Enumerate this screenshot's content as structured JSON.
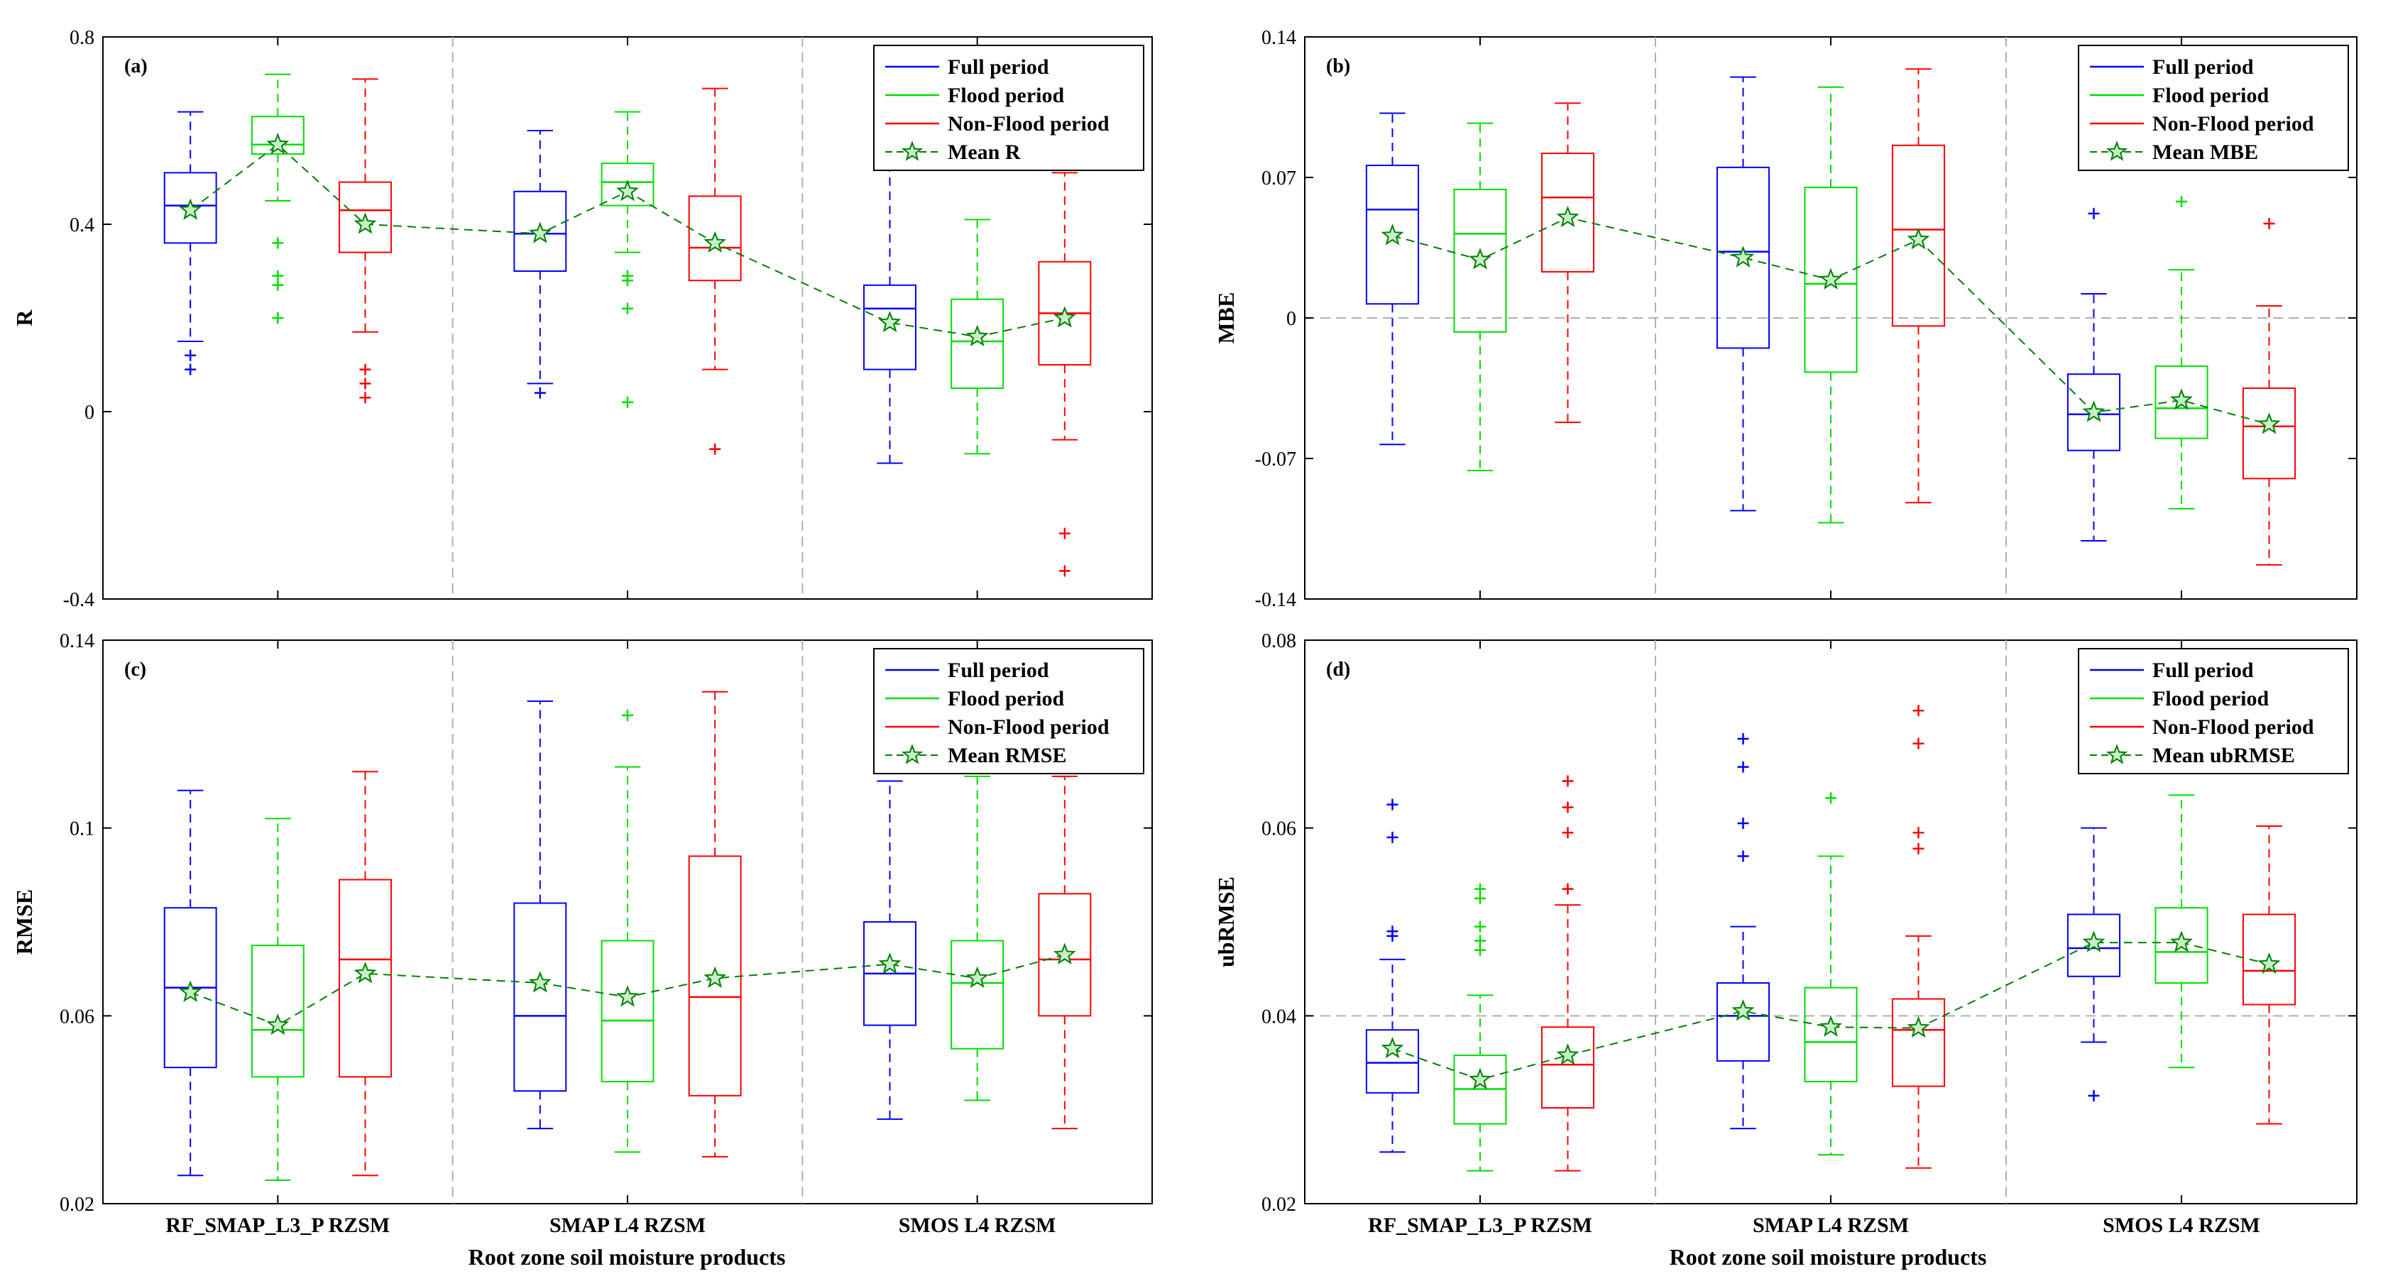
{
  "figure": {
    "xlabel": "Root zone soil moisture products",
    "categories": [
      "RF_SMAP_L3_P RZSM",
      "SMAP L4 RZSM",
      "SMOS L4 RZSM"
    ],
    "colors": {
      "full": "#0000ff",
      "flood": "#00dd00",
      "nonflood": "#ff0000",
      "mean": "#008000",
      "mean_fill": "#c8f0c8",
      "separator": "#b0b0b0"
    }
  },
  "chart_data": [
    {
      "type": "box",
      "panel_label": "(a)",
      "ylabel": "R",
      "ylim": [
        -0.4,
        0.8
      ],
      "yticks": [
        -0.4,
        0,
        0.4,
        0.8
      ],
      "ytick_labels": [
        "-0.4",
        "0",
        "0.4",
        "0.8"
      ],
      "hline": null,
      "legend": [
        "Full period",
        "Flood period",
        "Non-Flood period",
        "Mean R"
      ],
      "series_names": [
        "Full period",
        "Flood period",
        "Non-Flood period"
      ],
      "boxes": [
        [
          {
            "min": 0.15,
            "q1": 0.36,
            "median": 0.44,
            "q3": 0.51,
            "max": 0.64,
            "mean": 0.43,
            "outliers": [
              0.12,
              0.09
            ]
          },
          {
            "min": 0.45,
            "q1": 0.55,
            "median": 0.57,
            "q3": 0.63,
            "max": 0.72,
            "mean": 0.57,
            "outliers": [
              0.36,
              0.29,
              0.27,
              0.2
            ]
          },
          {
            "min": 0.17,
            "q1": 0.34,
            "median": 0.43,
            "q3": 0.49,
            "max": 0.71,
            "mean": 0.4,
            "outliers": [
              0.09,
              0.06,
              0.03
            ]
          }
        ],
        [
          {
            "min": 0.06,
            "q1": 0.3,
            "median": 0.38,
            "q3": 0.47,
            "max": 0.6,
            "mean": 0.38,
            "outliers": [
              0.04
            ]
          },
          {
            "min": 0.34,
            "q1": 0.44,
            "median": 0.49,
            "q3": 0.53,
            "max": 0.64,
            "mean": 0.47,
            "outliers": [
              0.29,
              0.28,
              0.22,
              0.02
            ]
          },
          {
            "min": 0.09,
            "q1": 0.28,
            "median": 0.35,
            "q3": 0.46,
            "max": 0.69,
            "mean": 0.36,
            "outliers": [
              -0.08
            ]
          }
        ],
        [
          {
            "min": -0.11,
            "q1": 0.09,
            "median": 0.22,
            "q3": 0.27,
            "max": 0.53,
            "mean": 0.19,
            "outliers": []
          },
          {
            "min": -0.09,
            "q1": 0.05,
            "median": 0.15,
            "q3": 0.24,
            "max": 0.41,
            "mean": 0.16,
            "outliers": []
          },
          {
            "min": -0.06,
            "q1": 0.1,
            "median": 0.21,
            "q3": 0.32,
            "max": 0.51,
            "mean": 0.2,
            "outliers": [
              -0.26,
              -0.34
            ]
          }
        ]
      ]
    },
    {
      "type": "box",
      "panel_label": "(b)",
      "ylabel": "MBE",
      "ylim": [
        -0.14,
        0.14
      ],
      "yticks": [
        -0.14,
        -0.07,
        0,
        0.07,
        0.14
      ],
      "ytick_labels": [
        "-0.14",
        "-0.07",
        "0",
        "0.07",
        "0.14"
      ],
      "hline": 0,
      "legend": [
        "Full period",
        "Flood period",
        "Non-Flood period",
        "Mean MBE"
      ],
      "series_names": [
        "Full period",
        "Flood period",
        "Non-Flood period"
      ],
      "boxes": [
        [
          {
            "min": -0.063,
            "q1": 0.007,
            "median": 0.054,
            "q3": 0.076,
            "max": 0.102,
            "mean": 0.041,
            "outliers": []
          },
          {
            "min": -0.076,
            "q1": -0.007,
            "median": 0.042,
            "q3": 0.064,
            "max": 0.097,
            "mean": 0.029,
            "outliers": []
          },
          {
            "min": -0.052,
            "q1": 0.023,
            "median": 0.06,
            "q3": 0.082,
            "max": 0.107,
            "mean": 0.05,
            "outliers": []
          }
        ],
        [
          {
            "min": -0.096,
            "q1": -0.015,
            "median": 0.033,
            "q3": 0.075,
            "max": 0.12,
            "mean": 0.03,
            "outliers": []
          },
          {
            "min": -0.102,
            "q1": -0.027,
            "median": 0.017,
            "q3": 0.065,
            "max": 0.115,
            "mean": 0.019,
            "outliers": []
          },
          {
            "min": -0.092,
            "q1": -0.004,
            "median": 0.044,
            "q3": 0.086,
            "max": 0.124,
            "mean": 0.039,
            "outliers": []
          }
        ],
        [
          {
            "min": -0.111,
            "q1": -0.066,
            "median": -0.048,
            "q3": -0.028,
            "max": 0.012,
            "mean": -0.047,
            "outliers": [
              0.052
            ]
          },
          {
            "min": -0.095,
            "q1": -0.06,
            "median": -0.045,
            "q3": -0.024,
            "max": 0.024,
            "mean": -0.041,
            "outliers": [
              0.058
            ]
          },
          {
            "min": -0.123,
            "q1": -0.08,
            "median": -0.054,
            "q3": -0.035,
            "max": 0.006,
            "mean": -0.053,
            "outliers": [
              0.047
            ]
          }
        ]
      ]
    },
    {
      "type": "box",
      "panel_label": "(c)",
      "ylabel": "RMSE",
      "ylim": [
        0.02,
        0.14
      ],
      "yticks": [
        0.02,
        0.06,
        0.1,
        0.14
      ],
      "ytick_labels": [
        "0.02",
        "0.06",
        "0.1",
        "0.14"
      ],
      "hline": null,
      "legend": [
        "Full period",
        "Flood period",
        "Non-Flood period",
        "Mean RMSE"
      ],
      "series_names": [
        "Full period",
        "Flood period",
        "Non-Flood period"
      ],
      "boxes": [
        [
          {
            "min": 0.026,
            "q1": 0.049,
            "median": 0.066,
            "q3": 0.083,
            "max": 0.108,
            "mean": 0.065,
            "outliers": []
          },
          {
            "min": 0.025,
            "q1": 0.047,
            "median": 0.057,
            "q3": 0.075,
            "max": 0.102,
            "mean": 0.058,
            "outliers": []
          },
          {
            "min": 0.026,
            "q1": 0.047,
            "median": 0.072,
            "q3": 0.089,
            "max": 0.112,
            "mean": 0.069,
            "outliers": []
          }
        ],
        [
          {
            "min": 0.036,
            "q1": 0.044,
            "median": 0.06,
            "q3": 0.084,
            "max": 0.127,
            "mean": 0.067,
            "outliers": []
          },
          {
            "min": 0.031,
            "q1": 0.046,
            "median": 0.059,
            "q3": 0.076,
            "max": 0.113,
            "mean": 0.064,
            "outliers": [
              0.124
            ]
          },
          {
            "min": 0.03,
            "q1": 0.043,
            "median": 0.064,
            "q3": 0.094,
            "max": 0.129,
            "mean": 0.068,
            "outliers": []
          }
        ],
        [
          {
            "min": 0.038,
            "q1": 0.058,
            "median": 0.069,
            "q3": 0.08,
            "max": 0.11,
            "mean": 0.071,
            "outliers": [
              0.122,
              0.12
            ]
          },
          {
            "min": 0.042,
            "q1": 0.053,
            "median": 0.067,
            "q3": 0.076,
            "max": 0.111,
            "mean": 0.068,
            "outliers": []
          },
          {
            "min": 0.036,
            "q1": 0.06,
            "median": 0.072,
            "q3": 0.086,
            "max": 0.111,
            "mean": 0.073,
            "outliers": []
          }
        ]
      ]
    },
    {
      "type": "box",
      "panel_label": "(d)",
      "ylabel": "ubRMSE",
      "ylim": [
        0.02,
        0.08
      ],
      "yticks": [
        0.02,
        0.04,
        0.06,
        0.08
      ],
      "ytick_labels": [
        "0.02",
        "0.04",
        "0.06",
        "0.08"
      ],
      "hline": 0.04,
      "legend": [
        "Full period",
        "Flood period",
        "Non-Flood period",
        "Mean ubRMSE"
      ],
      "series_names": [
        "Full period",
        "Flood period",
        "Non-Flood period"
      ],
      "boxes": [
        [
          {
            "min": 0.0255,
            "q1": 0.0318,
            "median": 0.035,
            "q3": 0.0385,
            "max": 0.046,
            "mean": 0.0365,
            "outliers": [
              0.0625,
              0.059,
              0.049,
              0.0485
            ]
          },
          {
            "min": 0.0235,
            "q1": 0.0285,
            "median": 0.0322,
            "q3": 0.0358,
            "max": 0.0422,
            "mean": 0.0332,
            "outliers": [
              0.0535,
              0.0525,
              0.0495,
              0.048,
              0.047
            ]
          },
          {
            "min": 0.0235,
            "q1": 0.0302,
            "median": 0.0348,
            "q3": 0.0388,
            "max": 0.0518,
            "mean": 0.0358,
            "outliers": [
              0.065,
              0.0622,
              0.0595,
              0.0535
            ]
          }
        ],
        [
          {
            "min": 0.028,
            "q1": 0.0352,
            "median": 0.04,
            "q3": 0.0435,
            "max": 0.0495,
            "mean": 0.0405,
            "outliers": [
              0.0695,
              0.0665,
              0.0605,
              0.057
            ]
          },
          {
            "min": 0.0252,
            "q1": 0.033,
            "median": 0.0372,
            "q3": 0.043,
            "max": 0.057,
            "mean": 0.0388,
            "outliers": [
              0.0632
            ]
          },
          {
            "min": 0.0238,
            "q1": 0.0325,
            "median": 0.0385,
            "q3": 0.0418,
            "max": 0.0485,
            "mean": 0.0387,
            "outliers": [
              0.0725,
              0.069,
              0.0595,
              0.0578
            ]
          }
        ],
        [
          {
            "min": 0.0372,
            "q1": 0.0442,
            "median": 0.0472,
            "q3": 0.0508,
            "max": 0.06,
            "mean": 0.0478,
            "outliers": [
              0.0705,
              0.0665,
              0.0315
            ]
          },
          {
            "min": 0.0345,
            "q1": 0.0435,
            "median": 0.0468,
            "q3": 0.0515,
            "max": 0.0635,
            "mean": 0.0478,
            "outliers": []
          },
          {
            "min": 0.0285,
            "q1": 0.0412,
            "median": 0.0448,
            "q3": 0.0508,
            "max": 0.0602,
            "mean": 0.0455,
            "outliers": []
          }
        ]
      ]
    }
  ]
}
